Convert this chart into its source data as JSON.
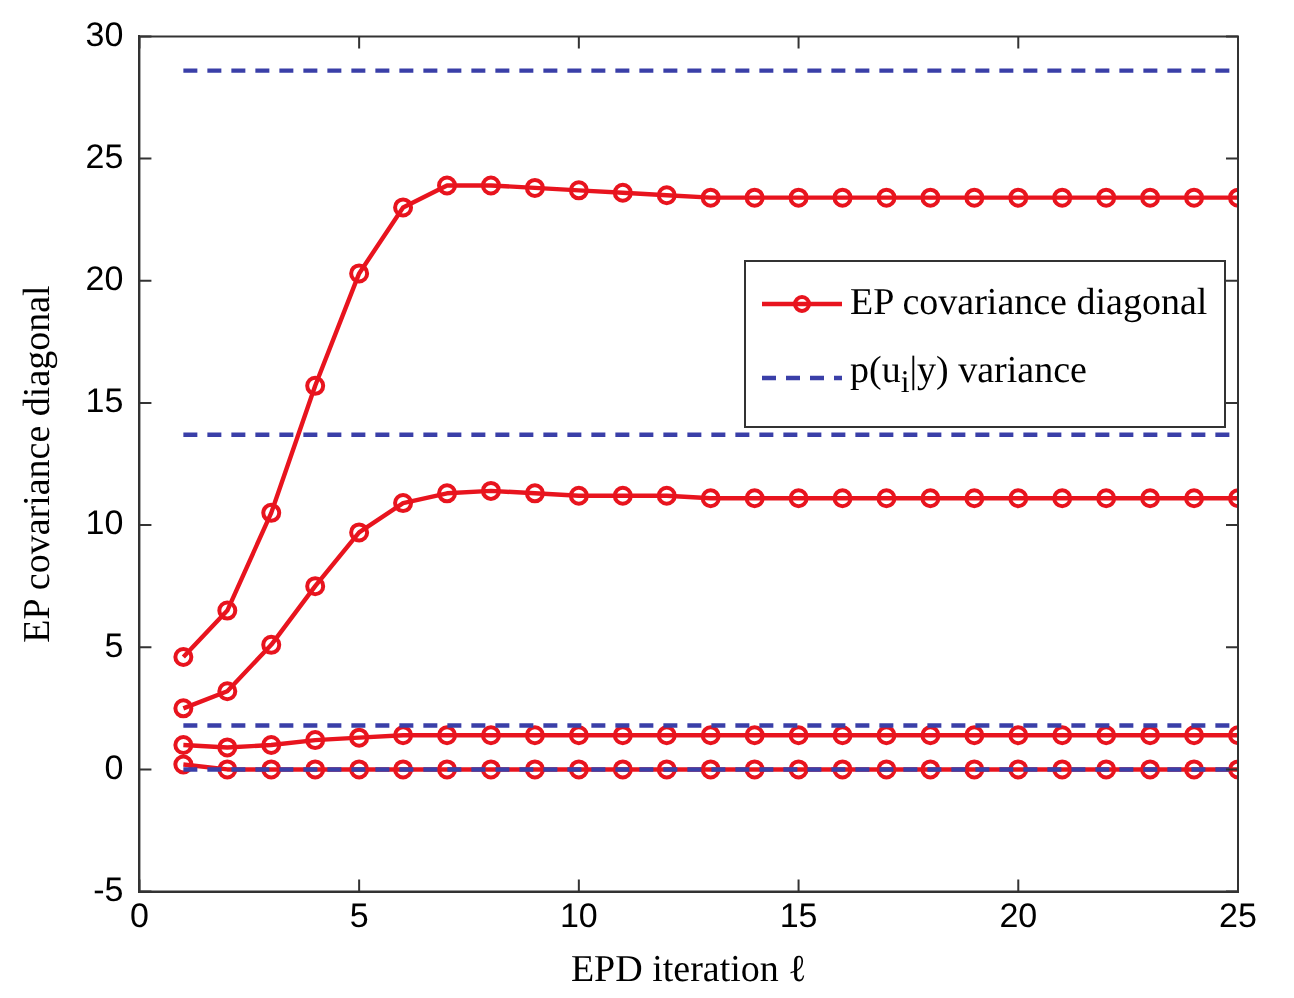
{
  "chart_data": {
    "type": "line",
    "xlabel": "EPD iteration ℓ",
    "ylabel": "EP covariance diagonal",
    "x": [
      1,
      2,
      3,
      4,
      5,
      6,
      7,
      8,
      9,
      10,
      11,
      12,
      13,
      14,
      15,
      16,
      17,
      18,
      19,
      20,
      21,
      22,
      23,
      24,
      25
    ],
    "xlim": [
      0,
      25
    ],
    "xticks": [
      0,
      5,
      10,
      15,
      20,
      25
    ],
    "ylim": [
      -5,
      30
    ],
    "yticks": [
      -5,
      0,
      5,
      10,
      15,
      20,
      25,
      30
    ],
    "grid": false,
    "legend": "right",
    "series": [
      {
        "name": "EP covariance diagonal",
        "color": "#e8141e",
        "marker": "circle",
        "line_style": "solid",
        "values": [
          4.6,
          6.5,
          10.5,
          15.7,
          20.3,
          23.0,
          23.9,
          23.9,
          23.8,
          23.7,
          23.6,
          23.5,
          23.4,
          23.4,
          23.4,
          23.4,
          23.4,
          23.4,
          23.4,
          23.4,
          23.4,
          23.4,
          23.4,
          23.4,
          23.4
        ]
      },
      {
        "color": "#e8141e",
        "marker": "circle",
        "line_style": "solid",
        "values": [
          2.5,
          3.2,
          5.1,
          7.5,
          9.7,
          10.9,
          11.3,
          11.4,
          11.3,
          11.2,
          11.2,
          11.2,
          11.1,
          11.1,
          11.1,
          11.1,
          11.1,
          11.1,
          11.1,
          11.1,
          11.1,
          11.1,
          11.1,
          11.1,
          11.1
        ]
      },
      {
        "color": "#e8141e",
        "marker": "circle",
        "line_style": "solid",
        "values": [
          1.0,
          0.9,
          1.0,
          1.2,
          1.3,
          1.4,
          1.4,
          1.4,
          1.4,
          1.4,
          1.4,
          1.4,
          1.4,
          1.4,
          1.4,
          1.4,
          1.4,
          1.4,
          1.4,
          1.4,
          1.4,
          1.4,
          1.4,
          1.4,
          1.4
        ]
      },
      {
        "color": "#e8141e",
        "marker": "circle",
        "line_style": "solid",
        "values": [
          0.2,
          0,
          0,
          0,
          0,
          0,
          0,
          0,
          0,
          0,
          0,
          0,
          0,
          0,
          0,
          0,
          0,
          0,
          0,
          0,
          0,
          0,
          0,
          0,
          0
        ]
      },
      {
        "name": "p(u$_{i}$|y) variance",
        "color": "#3a3fa8",
        "marker": "none",
        "line_style": "dashed",
        "values": [
          28.6,
          28.6,
          28.6,
          28.6,
          28.6,
          28.6,
          28.6,
          28.6,
          28.6,
          28.6,
          28.6,
          28.6,
          28.6,
          28.6,
          28.6,
          28.6,
          28.6,
          28.6,
          28.6,
          28.6,
          28.6,
          28.6,
          28.6,
          28.6,
          28.6
        ]
      },
      {
        "color": "#3a3fa8",
        "marker": "none",
        "line_style": "dashed",
        "values": [
          13.7,
          13.7,
          13.7,
          13.7,
          13.7,
          13.7,
          13.7,
          13.7,
          13.7,
          13.7,
          13.7,
          13.7,
          13.7,
          13.7,
          13.7,
          13.7,
          13.7,
          13.7,
          13.7,
          13.7,
          13.7,
          13.7,
          13.7,
          13.7,
          13.7
        ]
      },
      {
        "color": "#3a3fa8",
        "marker": "none",
        "line_style": "dashed",
        "values": [
          1.8,
          1.8,
          1.8,
          1.8,
          1.8,
          1.8,
          1.8,
          1.8,
          1.8,
          1.8,
          1.8,
          1.8,
          1.8,
          1.8,
          1.8,
          1.8,
          1.8,
          1.8,
          1.8,
          1.8,
          1.8,
          1.8,
          1.8,
          1.8,
          1.8
        ]
      },
      {
        "color": "#3a3fa8",
        "marker": "none",
        "line_style": "dashed",
        "values": [
          0,
          0,
          0,
          0,
          0,
          0,
          0,
          0,
          0,
          0,
          0,
          0,
          0,
          0,
          0,
          0,
          0,
          0,
          0,
          0,
          0,
          0,
          0,
          0,
          0
        ]
      }
    ]
  }
}
